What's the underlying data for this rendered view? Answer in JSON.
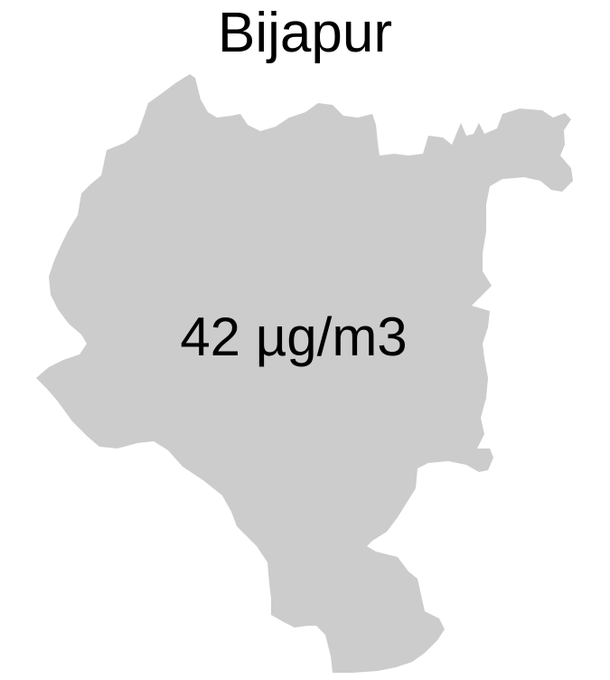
{
  "map": {
    "title": "Bijapur",
    "value_label": "42 µg/m3",
    "region_fill": "#cccccc",
    "background": "#ffffff"
  }
}
